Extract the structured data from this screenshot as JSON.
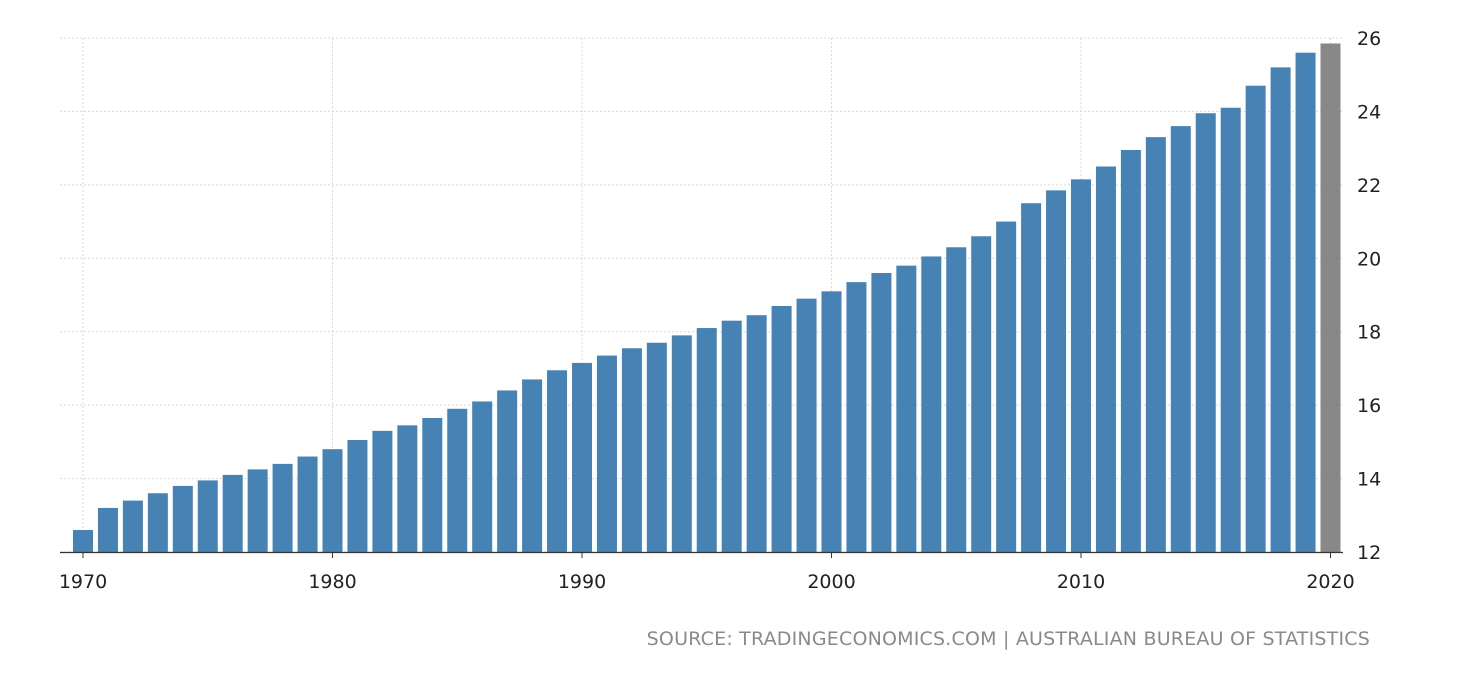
{
  "chart_data": {
    "type": "bar",
    "categories": [
      1970,
      1971,
      1972,
      1973,
      1974,
      1975,
      1976,
      1977,
      1978,
      1979,
      1980,
      1981,
      1982,
      1983,
      1984,
      1985,
      1986,
      1987,
      1988,
      1989,
      1990,
      1991,
      1992,
      1993,
      1994,
      1995,
      1996,
      1997,
      1998,
      1999,
      2000,
      2001,
      2002,
      2003,
      2004,
      2005,
      2006,
      2007,
      2008,
      2009,
      2010,
      2011,
      2012,
      2013,
      2014,
      2015,
      2016,
      2017,
      2018,
      2019,
      2020
    ],
    "values": [
      12.6,
      13.2,
      13.4,
      13.6,
      13.8,
      13.95,
      14.1,
      14.25,
      14.4,
      14.6,
      14.8,
      15.05,
      15.3,
      15.45,
      15.65,
      15.9,
      16.1,
      16.4,
      16.7,
      16.95,
      17.15,
      17.35,
      17.55,
      17.7,
      17.9,
      18.1,
      18.3,
      18.45,
      18.7,
      18.9,
      19.1,
      19.35,
      19.6,
      19.8,
      20.05,
      20.3,
      20.6,
      21.0,
      21.5,
      21.85,
      22.15,
      22.5,
      22.95,
      23.3,
      23.6,
      23.95,
      24.1,
      24.7,
      25.2,
      25.6,
      25.85
    ],
    "bar_color": "#4682b4",
    "highlight_color": "#888888",
    "highlight_index": 50,
    "ylim": [
      12,
      26
    ],
    "yticks": [
      12,
      14,
      16,
      18,
      20,
      22,
      24,
      26
    ],
    "xticks": [
      1970,
      1980,
      1990,
      2000,
      2010,
      2020
    ],
    "grid": true,
    "y_axis_side": "right"
  },
  "source": "SOURCE: TRADINGECONOMICS.COM | AUSTRALIAN BUREAU OF STATISTICS"
}
